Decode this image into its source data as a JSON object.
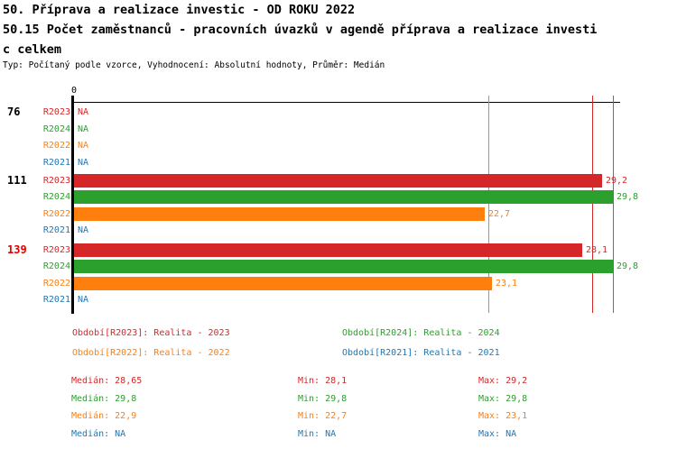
{
  "title": {
    "line1": "50. Příprava a realizace investic - OD ROKU 2022",
    "line2": "50.15 Počet zaměstnanců - pracovních úvazků v agendě příprava a realizace investi",
    "line3": "c celkem",
    "meta": "Typ: Počítaný podle vzorce, Vyhodnocení: Absolutní hodnoty, Průměr: Medián"
  },
  "colors": {
    "R2023": "#d62728",
    "R2024": "#2ca02c",
    "R2022": "#ff7f0e",
    "R2021": "#1f77b4",
    "axis": "#000000",
    "group_139": "#e00000",
    "group_default": "#000000"
  },
  "chart_data": {
    "type": "bar",
    "orientation": "horizontal",
    "na_label": "NA",
    "x_axis": {
      "origin_tick": "0",
      "xlim": [
        0,
        33.3
      ]
    },
    "series_order": [
      "R2023",
      "R2024",
      "R2022",
      "R2021"
    ],
    "groups": [
      {
        "label": "76",
        "label_color_key": "group_default",
        "bars": [
          {
            "series": "R2023",
            "value": null,
            "display": "NA"
          },
          {
            "series": "R2024",
            "value": null,
            "display": "NA"
          },
          {
            "series": "R2022",
            "value": null,
            "display": "NA"
          },
          {
            "series": "R2021",
            "value": null,
            "display": "NA"
          }
        ]
      },
      {
        "label": "111",
        "label_color_key": "group_default",
        "bars": [
          {
            "series": "R2023",
            "value": 29.2,
            "display": "29,2"
          },
          {
            "series": "R2024",
            "value": 29.8,
            "display": "29,8"
          },
          {
            "series": "R2022",
            "value": 22.7,
            "display": "22,7"
          },
          {
            "series": "R2021",
            "value": null,
            "display": "NA"
          }
        ]
      },
      {
        "label": "139",
        "label_color_key": "group_139",
        "bars": [
          {
            "series": "R2023",
            "value": 28.1,
            "display": "28,1"
          },
          {
            "series": "R2024",
            "value": 29.8,
            "display": "29,8"
          },
          {
            "series": "R2022",
            "value": 23.1,
            "display": "23,1"
          },
          {
            "series": "R2021",
            "value": null,
            "display": "NA"
          }
        ]
      }
    ],
    "reference_lines": [
      {
        "series": "R2022",
        "value": 22.9
      },
      {
        "series": "R2023",
        "value": 28.65
      },
      {
        "series": "R2024",
        "value": 29.8
      }
    ]
  },
  "legend": [
    {
      "series": "R2023",
      "label": "Období[R2023]: Realita - 2023"
    },
    {
      "series": "R2024",
      "label": "Období[R2024]: Realita - 2024"
    },
    {
      "series": "R2022",
      "label": "Období[R2022]: Realita - 2022"
    },
    {
      "series": "R2021",
      "label": "Období[R2021]: Realita - 2021"
    }
  ],
  "stats": [
    {
      "series": "R2023",
      "median": "Medián: 28,65",
      "min": "Min: 28,1",
      "max": "Max: 29,2"
    },
    {
      "series": "R2024",
      "median": "Medián: 29,8",
      "min": "Min: 29,8",
      "max": "Max: 29,8"
    },
    {
      "series": "R2022",
      "median": "Medián: 22,9",
      "min": "Min: 22,7",
      "max": "Max: 23,1"
    },
    {
      "series": "R2021",
      "median": "Medián: NA",
      "min": "Min: NA",
      "max": "Max: NA"
    }
  ]
}
